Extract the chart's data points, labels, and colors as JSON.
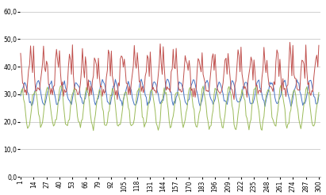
{
  "yticks": [
    0.0,
    10.0,
    20.0,
    30.0,
    40.0,
    50.0,
    60.0
  ],
  "xticks": [
    1,
    14,
    27,
    40,
    53,
    66,
    79,
    92,
    105,
    118,
    131,
    144,
    157,
    170,
    183,
    196,
    209,
    222,
    235,
    248,
    261,
    274,
    287,
    300
  ],
  "ylim": [
    0.0,
    63.0
  ],
  "xlim": [
    0.5,
    302
  ],
  "red_color": "#C0504D",
  "blue_color": "#4472C4",
  "green_color": "#9BBB59",
  "bg_color": "#FFFFFF",
  "grid_color": "#BEBEBE",
  "linewidth": 0.7,
  "tick_label_fontsize": 5.5
}
